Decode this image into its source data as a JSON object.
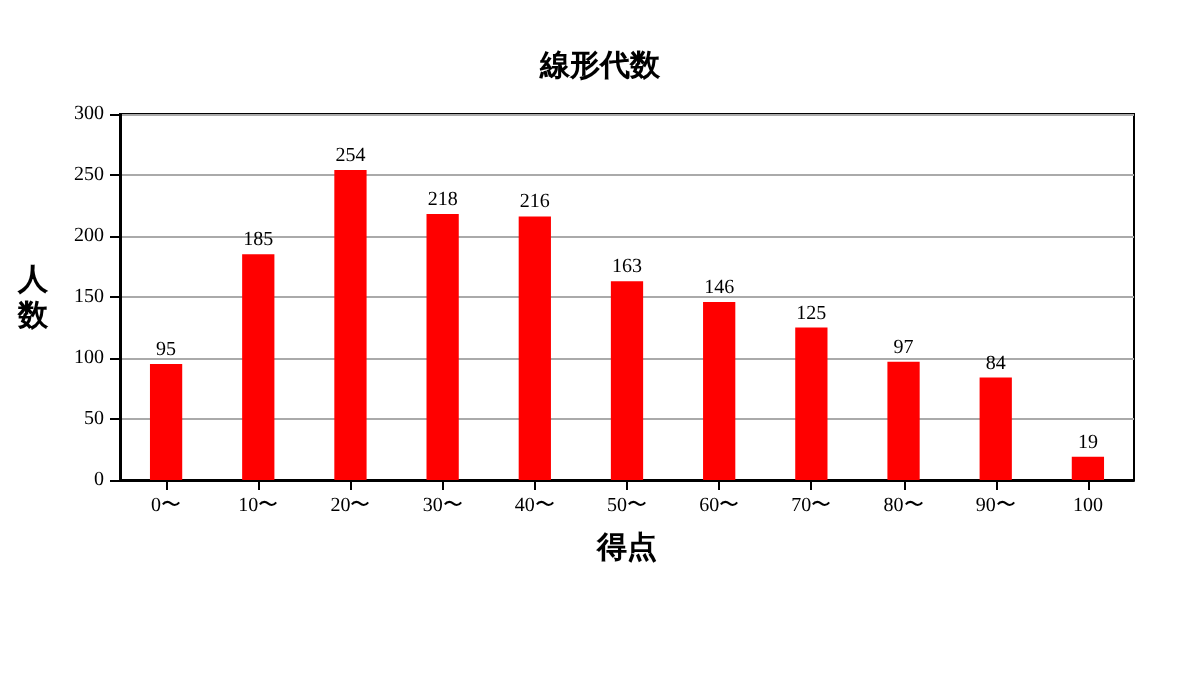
{
  "chart_data": {
    "type": "bar",
    "title": "線形代数",
    "xlabel": "得点",
    "ylabel": "人数",
    "categories": [
      "0〜",
      "10〜",
      "20〜",
      "30〜",
      "40〜",
      "50〜",
      "60〜",
      "70〜",
      "80〜",
      "90〜",
      "100"
    ],
    "values": [
      95,
      185,
      254,
      218,
      216,
      163,
      146,
      125,
      97,
      84,
      19
    ],
    "color": "#ff0000",
    "ylim": [
      0,
      300
    ],
    "yticks": [
      0,
      50,
      100,
      150,
      200,
      250,
      300
    ],
    "grid": "y",
    "data_labels": true
  }
}
